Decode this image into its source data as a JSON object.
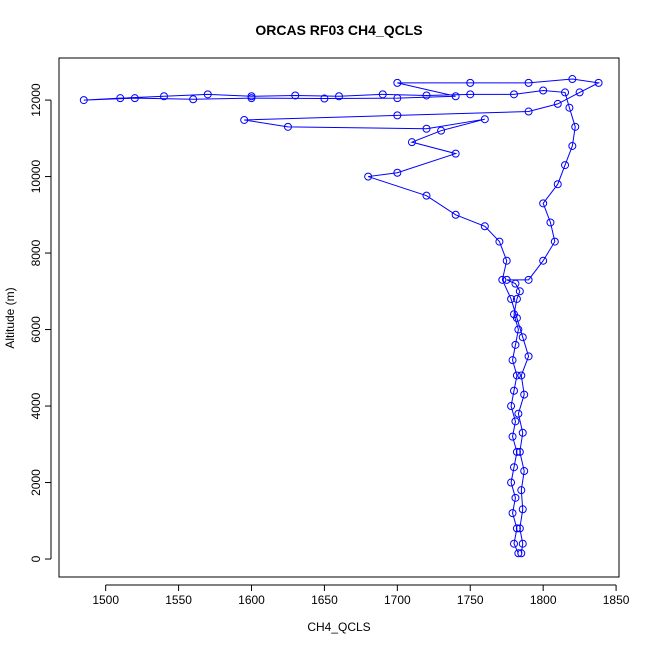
{
  "chart_data": {
    "type": "line",
    "title": "ORCAS RF03 CH4_QCLS",
    "x_label": "CH4_QCLS",
    "y_label": "Altitude (m)",
    "color": "#0000ff",
    "x": [
      1783,
      1780,
      1782,
      1779,
      1781,
      1778,
      1780,
      1782,
      1779,
      1781,
      1778,
      1780,
      1782,
      1779,
      1781,
      1783,
      1780,
      1782,
      1784,
      1781,
      1775,
      1790,
      1800,
      1808,
      1805,
      1800,
      1810,
      1815,
      1820,
      1822,
      1818,
      1815,
      1800,
      1780,
      1750,
      1720,
      1690,
      1660,
      1630,
      1600,
      1570,
      1540,
      1510,
      1485,
      1520,
      1560,
      1600,
      1650,
      1700,
      1740,
      1700,
      1750,
      1790,
      1820,
      1838,
      1825,
      1810,
      1790,
      1700,
      1595,
      1625,
      1720,
      1760,
      1730,
      1710,
      1740,
      1700,
      1680,
      1720,
      1740,
      1760,
      1770,
      1775,
      1772,
      1778,
      1782,
      1786,
      1790,
      1785,
      1787,
      1783,
      1786,
      1784,
      1787,
      1785,
      1786,
      1784,
      1786,
      1785
    ],
    "y": [
      150,
      400,
      800,
      1200,
      1600,
      2000,
      2400,
      2800,
      3200,
      3600,
      4000,
      4400,
      4800,
      5200,
      5600,
      6000,
      6400,
      6800,
      7000,
      7200,
      7300,
      7300,
      7800,
      8300,
      8800,
      9300,
      9800,
      10300,
      10800,
      11300,
      11800,
      12200,
      12250,
      12150,
      12150,
      12120,
      12150,
      12100,
      12120,
      12100,
      12150,
      12100,
      12050,
      12000,
      12050,
      12020,
      12050,
      12040,
      12050,
      12100,
      12450,
      12450,
      12450,
      12550,
      12450,
      12200,
      11900,
      11700,
      11600,
      11480,
      11300,
      11250,
      11500,
      11200,
      10900,
      10600,
      10100,
      10000,
      9500,
      9000,
      8700,
      8300,
      7800,
      7300,
      6800,
      6300,
      5800,
      5300,
      4800,
      4300,
      3800,
      3300,
      2800,
      2300,
      1800,
      1300,
      800,
      400,
      150
    ],
    "xlim": [
      1468,
      1852
    ],
    "ylim": [
      -470,
      13100
    ],
    "xticks": [
      1500,
      1550,
      1600,
      1650,
      1700,
      1750,
      1800,
      1850
    ],
    "yticks": [
      0,
      2000,
      4000,
      6000,
      8000,
      10000,
      12000
    ]
  }
}
